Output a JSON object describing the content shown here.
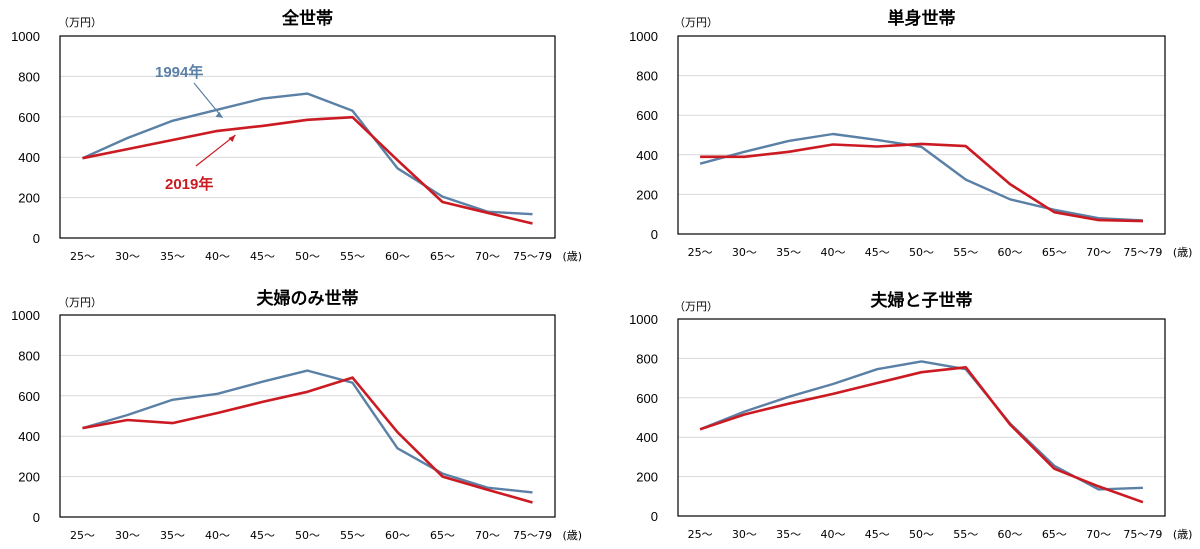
{
  "colors": {
    "series_1994": "#5b80a6",
    "series_2019": "#cc1a22",
    "grid": "#d9d9d9",
    "frame": "#000000"
  },
  "chart_data": [
    {
      "type": "line",
      "title": "全世帯",
      "unit_label": "（万円）",
      "x_unit": "(歳)",
      "categories": [
        "25～",
        "30～",
        "35～",
        "40～",
        "45～",
        "50～",
        "55～",
        "60～",
        "65～",
        "70～",
        "75～79"
      ],
      "ylim": [
        0,
        1000
      ],
      "yticks": [
        0,
        200,
        400,
        600,
        800,
        1000
      ],
      "grid": true,
      "annotations": [
        {
          "text": "1994年",
          "series": "1994"
        },
        {
          "text": "2019年",
          "series": "2019"
        }
      ],
      "series": [
        {
          "name": "1994年",
          "key": "1994",
          "values": [
            395,
            495,
            580,
            635,
            690,
            715,
            630,
            345,
            205,
            130,
            118
          ]
        },
        {
          "name": "2019年",
          "key": "2019",
          "values": [
            395,
            440,
            485,
            530,
            555,
            585,
            598,
            385,
            178,
            125,
            72
          ]
        }
      ]
    },
    {
      "type": "line",
      "title": "単身世帯",
      "unit_label": "（万円）",
      "x_unit": "(歳)",
      "categories": [
        "25～",
        "30～",
        "35～",
        "40～",
        "45～",
        "50～",
        "55～",
        "60～",
        "65～",
        "70～",
        "75～79"
      ],
      "ylim": [
        0,
        1000
      ],
      "yticks": [
        0,
        200,
        400,
        600,
        800,
        1000
      ],
      "grid": true,
      "series": [
        {
          "key": "1994",
          "values": [
            355,
            415,
            470,
            505,
            475,
            440,
            275,
            175,
            122,
            80,
            68
          ]
        },
        {
          "key": "2019",
          "values": [
            390,
            390,
            415,
            452,
            442,
            455,
            444,
            252,
            110,
            70,
            65
          ]
        }
      ]
    },
    {
      "type": "line",
      "title": "夫婦のみ世帯",
      "unit_label": "（万円）",
      "x_unit": "(歳)",
      "categories": [
        "25～",
        "30～",
        "35～",
        "40～",
        "45～",
        "50～",
        "55～",
        "60～",
        "65～",
        "70～",
        "75～79"
      ],
      "ylim": [
        0,
        1000
      ],
      "yticks": [
        0,
        200,
        400,
        600,
        800,
        1000
      ],
      "grid": true,
      "series": [
        {
          "key": "1994",
          "values": [
            440,
            505,
            580,
            610,
            670,
            725,
            665,
            340,
            215,
            145,
            122
          ]
        },
        {
          "key": "2019",
          "values": [
            440,
            480,
            465,
            515,
            570,
            620,
            690,
            420,
            200,
            135,
            72
          ]
        }
      ]
    },
    {
      "type": "line",
      "title": "夫婦と子世帯",
      "unit_label": "（万円）",
      "x_unit": "(歳)",
      "categories": [
        "25～",
        "30～",
        "35～",
        "40～",
        "45～",
        "50～",
        "55～",
        "60～",
        "65～",
        "70～",
        "75～79"
      ],
      "ylim": [
        0,
        1000
      ],
      "yticks": [
        0,
        200,
        400,
        600,
        800,
        1000
      ],
      "grid": true,
      "series": [
        {
          "key": "1994",
          "values": [
            440,
            530,
            605,
            670,
            745,
            785,
            745,
            470,
            255,
            135,
            143
          ]
        },
        {
          "key": "2019",
          "values": [
            440,
            515,
            570,
            620,
            675,
            730,
            755,
            465,
            240,
            150,
            70
          ]
        }
      ]
    }
  ]
}
